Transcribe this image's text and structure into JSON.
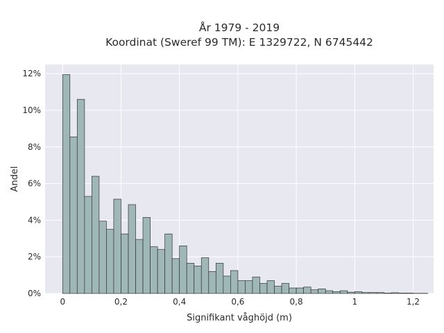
{
  "chart_data": {
    "type": "bar",
    "title_line1": "År 1979 - 2019",
    "title_line2": "Koordinat (Sweref 99 TM): E 1329722, N 6745442",
    "xlabel": "Signifikant våghöjd (m)",
    "ylabel": "Andel",
    "xlim": [
      -0.06,
      1.27
    ],
    "ylim": [
      0,
      12.5
    ],
    "x_ticks": [
      0,
      0.2,
      0.4,
      0.6,
      0.8,
      1,
      1.2
    ],
    "x_tick_labels": [
      "0",
      "0,2",
      "0,4",
      "0,6",
      "0,8",
      "1",
      "1,2"
    ],
    "y_ticks": [
      0,
      2,
      4,
      6,
      8,
      10,
      12
    ],
    "y_tick_labels": [
      "0%",
      "2%",
      "4%",
      "6%",
      "8%",
      "10%",
      "12%"
    ],
    "bin_start": 0,
    "bin_width": 0.025,
    "values": [
      11.95,
      8.55,
      10.6,
      5.3,
      6.4,
      3.95,
      3.5,
      5.15,
      3.25,
      4.85,
      2.95,
      4.15,
      2.55,
      2.4,
      3.25,
      1.9,
      2.6,
      1.65,
      1.5,
      1.95,
      1.2,
      1.65,
      0.95,
      1.25,
      0.7,
      0.7,
      0.9,
      0.55,
      0.7,
      0.4,
      0.55,
      0.3,
      0.3,
      0.35,
      0.2,
      0.25,
      0.15,
      0.1,
      0.15,
      0.07,
      0.1,
      0.05,
      0.05,
      0.05,
      0.02,
      0.04,
      0.02,
      0.02,
      0.01,
      0.01
    ],
    "bar_color": "#9fb7b7",
    "bar_edge_color": "#333333",
    "plot_background": "#e8e8f0",
    "grid": true,
    "grid_color": "#ffffff"
  }
}
